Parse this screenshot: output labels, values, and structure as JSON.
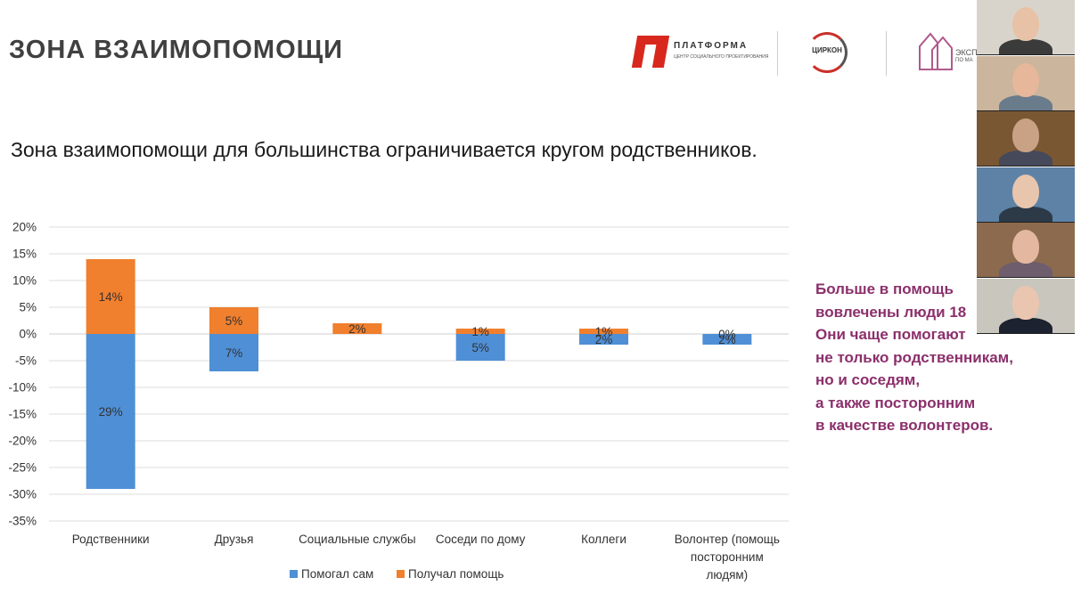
{
  "slide": {
    "title": "ЗОНА ВЗАИМОПОМОЩИ",
    "subtitle": "Зона взаимопомощи для большинства ограничивается кругом родственников."
  },
  "logos": {
    "platforma_name": "ПЛАТФОРМА",
    "platforma_tag": "ЦЕНТР СОЦИАЛЬНОГО ПРОЕКТИРОВАНИЯ",
    "zirkon_name": "ЦИРКОН",
    "expert_text1": "ЭКСПА",
    "expert_text2": "ПО МА"
  },
  "note": {
    "lines": [
      "Больше в помощь",
      "вовлечены люди 18",
      "Они чаще помогают",
      "не только родственникам,",
      "но и соседям,",
      "а также посторонним",
      "в качестве волонтеров."
    ]
  },
  "chart_data": {
    "type": "bar",
    "title": "",
    "xlabel": "",
    "ylabel": "",
    "ylim": [
      -35,
      20
    ],
    "yticks": [
      "20%",
      "15%",
      "10%",
      "5%",
      "0%",
      "-5%",
      "-10%",
      "-15%",
      "-20%",
      "-25%",
      "-30%",
      "-35%"
    ],
    "grid": true,
    "legend_position": "bottom",
    "categories": [
      [
        "Родственники"
      ],
      [
        "Друзья"
      ],
      [
        "Социальные службы"
      ],
      [
        "Соседи по дому"
      ],
      [
        "Коллеги"
      ],
      [
        "Волонтер (помощь",
        "посторонним",
        "людям)"
      ]
    ],
    "series": [
      {
        "name": "Помогал сам",
        "color": "#4f8fd6",
        "values": [
          -29,
          -7,
          0,
          -5,
          -2,
          -2
        ],
        "labels": [
          "29%",
          "7%",
          "",
          "5%",
          "2%",
          "2%"
        ]
      },
      {
        "name": "Получал  помощь",
        "color": "#f07f2e",
        "values": [
          14,
          5,
          2,
          1,
          1,
          0
        ],
        "labels": [
          "14%",
          "5%",
          "2%",
          "1%",
          "1%",
          "0%"
        ]
      }
    ]
  },
  "video_tiles": [
    {
      "skin": "#e7c2a6",
      "bg": "#d9d4cb",
      "shirt": "#3b3b3b"
    },
    {
      "skin": "#e6b79b",
      "bg": "#cbb59c",
      "shirt": "#6a7b8c"
    },
    {
      "skin": "#c9a184",
      "bg": "#7a5733",
      "shirt": "#46495a"
    },
    {
      "skin": "#e8c5ad",
      "bg": "#5d82a6",
      "shirt": "#2c3a48"
    },
    {
      "skin": "#e4b8a0",
      "bg": "#8c6a4d",
      "shirt": "#6d5d6d"
    },
    {
      "skin": "#eac6b0",
      "bg": "#c9c6bd",
      "shirt": "#1d2230"
    }
  ]
}
